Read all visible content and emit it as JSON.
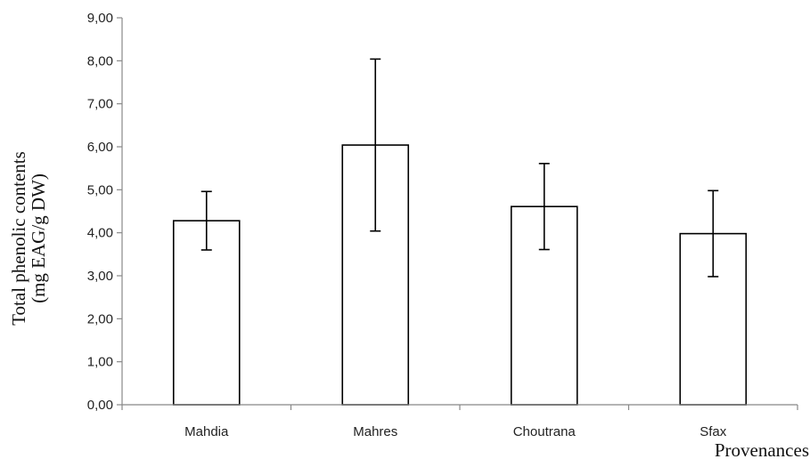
{
  "chart_data": {
    "type": "bar",
    "categories": [
      "Mahdia",
      "Mahres",
      "Choutrana",
      "Sfax"
    ],
    "values": [
      4.28,
      6.04,
      4.61,
      3.98
    ],
    "errors": [
      0.68,
      2.0,
      1.0,
      1.0
    ],
    "xlabel": "Provenances",
    "ylabel_lines": [
      "Total phenolic contents",
      "(mg EAG/g DW)"
    ],
    "ylim": [
      0,
      9
    ],
    "ytick_step": 1,
    "ytick_labels": [
      "0,00",
      "1,00",
      "2,00",
      "3,00",
      "4,00",
      "5,00",
      "6,00",
      "7,00",
      "8,00",
      "9,00"
    ],
    "grid": false,
    "bar_fill": "#ffffff",
    "bar_stroke": "#000000"
  }
}
